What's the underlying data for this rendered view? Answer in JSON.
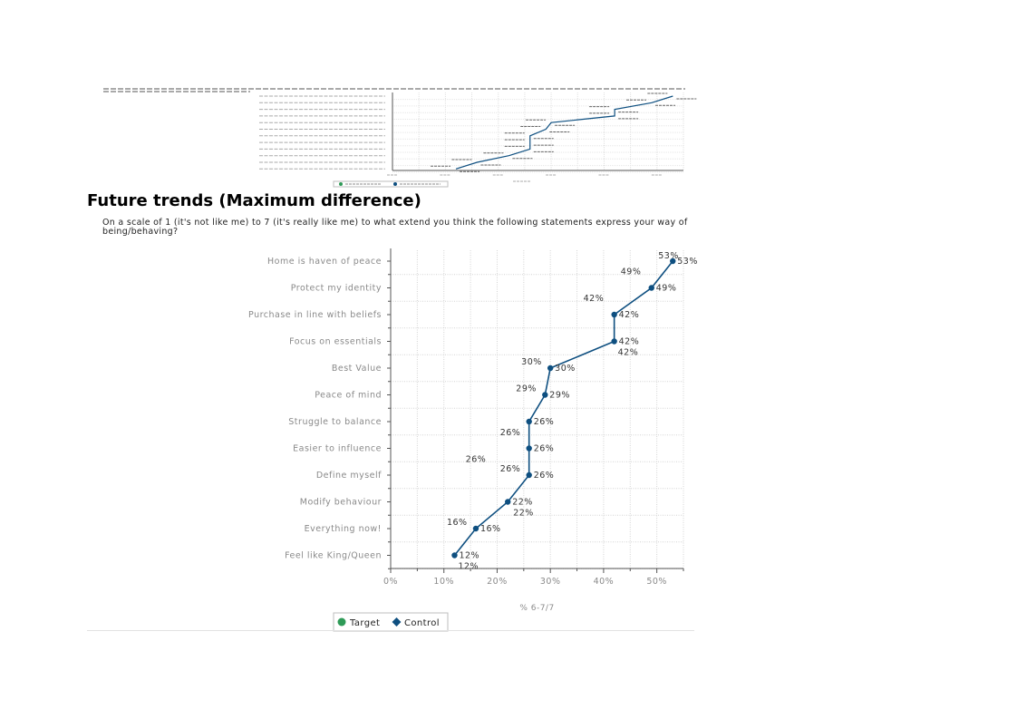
{
  "section_title": "Future trends (Maximum difference)",
  "question": "On a scale of 1 (it's not like me) to 7 (it's really like me) to what extend you think the following statements express your way of being/behaving?",
  "colors": {
    "control": "#0e4f80",
    "target": "#2e9a57",
    "grid": "#d4d4d4",
    "axis": "#555555",
    "label": "#8a8a8a"
  },
  "chart_data": {
    "type": "line",
    "categories": [
      "Home is haven of peace",
      "Protect my identity",
      "Purchase in line with beliefs",
      "Focus on essentials",
      "Best Value",
      "Peace of mind",
      "Struggle to balance",
      "Easier to influence",
      "Define myself",
      "Modify behaviour",
      "Everything now!",
      "Feel like King/Queen"
    ],
    "series": [
      {
        "name": "Target",
        "values": [
          53,
          49,
          42,
          42,
          30,
          29,
          26,
          26,
          26,
          22,
          16,
          12
        ]
      },
      {
        "name": "Control",
        "values": [
          53,
          49,
          42,
          42,
          30,
          29,
          26,
          26,
          26,
          22,
          16,
          12
        ]
      }
    ],
    "control_labels": [
      "53%",
      "49%",
      "42%",
      "42%",
      "30%",
      "29%",
      "26%",
      "26%",
      "26%",
      "22%",
      "16%",
      "12%"
    ],
    "target_labels": [
      "53%",
      "49%",
      "42%",
      "42%",
      "30%",
      "29%",
      "26%",
      "26%",
      "26%",
      "22%",
      "16%",
      "12%"
    ],
    "xlabel": "% 6-7/7",
    "xlim": [
      0,
      55
    ],
    "xticks": [
      "0%",
      "10%",
      "20%",
      "30%",
      "40%",
      "50%"
    ],
    "orientation": "horizontal-categories",
    "grid": true,
    "legend": "bottom",
    "legend_entries": [
      "Target",
      "Control"
    ]
  }
}
